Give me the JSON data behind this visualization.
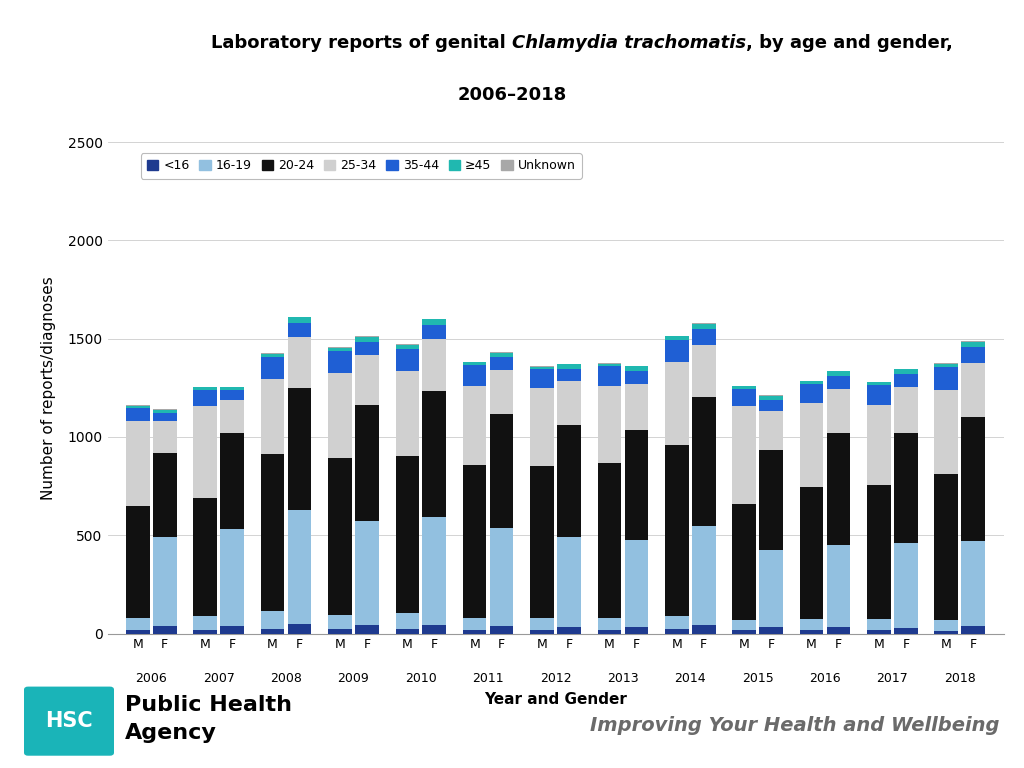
{
  "title_part1": "Laboratory reports of genital ",
  "title_part2": "Chlamydia trachomatis",
  "title_part3": ", by age and gender,",
  "title_line2": "2006–2018",
  "xlabel": "Year and Gender",
  "ylabel": "Number of reports/diagnoses",
  "years": [
    2006,
    2007,
    2008,
    2009,
    2010,
    2011,
    2012,
    2013,
    2014,
    2015,
    2016,
    2017,
    2018
  ],
  "ylim": [
    0,
    2500
  ],
  "yticks": [
    0,
    500,
    1000,
    1500,
    2000,
    2500
  ],
  "age_groups": [
    "<16",
    "16-19",
    "20-24",
    "25-34",
    "35-44",
    "≥45",
    "Unknown"
  ],
  "colors": [
    "#1e3a8f",
    "#92c0e0",
    "#111111",
    "#d0d0d0",
    "#1f5fd4",
    "#20b8b0",
    "#a8a8a8"
  ],
  "data_M": {
    "<16": [
      20,
      20,
      25,
      25,
      25,
      20,
      20,
      20,
      25,
      20,
      20,
      20,
      15
    ],
    "16-19": [
      60,
      70,
      90,
      70,
      80,
      60,
      60,
      60,
      65,
      50,
      55,
      55,
      55
    ],
    "20-24": [
      570,
      600,
      800,
      800,
      800,
      780,
      770,
      790,
      870,
      590,
      670,
      680,
      740
    ],
    "25-34": [
      430,
      470,
      380,
      430,
      430,
      400,
      400,
      390,
      420,
      500,
      430,
      410,
      430
    ],
    "35-44": [
      70,
      80,
      110,
      110,
      115,
      105,
      95,
      100,
      115,
      85,
      95,
      100,
      115
    ],
    "≥45": [
      10,
      12,
      18,
      18,
      18,
      14,
      13,
      13,
      18,
      13,
      13,
      13,
      18
    ],
    "Unknown": [
      3,
      3,
      3,
      3,
      3,
      3,
      3,
      3,
      3,
      3,
      3,
      3,
      3
    ]
  },
  "data_F": {
    "<16": [
      40,
      40,
      50,
      45,
      45,
      38,
      35,
      35,
      45,
      35,
      35,
      30,
      38
    ],
    "16-19": [
      450,
      490,
      580,
      530,
      550,
      500,
      455,
      440,
      500,
      390,
      415,
      430,
      435
    ],
    "20-24": [
      430,
      490,
      620,
      590,
      640,
      580,
      570,
      560,
      660,
      510,
      570,
      560,
      630
    ],
    "25-34": [
      160,
      170,
      260,
      250,
      265,
      225,
      225,
      235,
      265,
      195,
      225,
      235,
      275
    ],
    "35-44": [
      42,
      47,
      72,
      68,
      72,
      62,
      62,
      67,
      78,
      58,
      67,
      67,
      78
    ],
    "≥45": [
      16,
      16,
      27,
      27,
      27,
      22,
      22,
      22,
      27,
      22,
      22,
      22,
      27
    ],
    "Unknown": [
      3,
      3,
      3,
      3,
      3,
      3,
      3,
      3,
      3,
      3,
      3,
      3,
      3
    ]
  },
  "background_color": "#ffffff",
  "bar_width": 0.35,
  "legend_labels": [
    "<16",
    "16-19",
    "20-24",
    "25-34",
    "35-44",
    "≥45",
    "Unknown"
  ],
  "hsc_color": "#1ab4b8",
  "improving_text_color": "#6a6a6a"
}
